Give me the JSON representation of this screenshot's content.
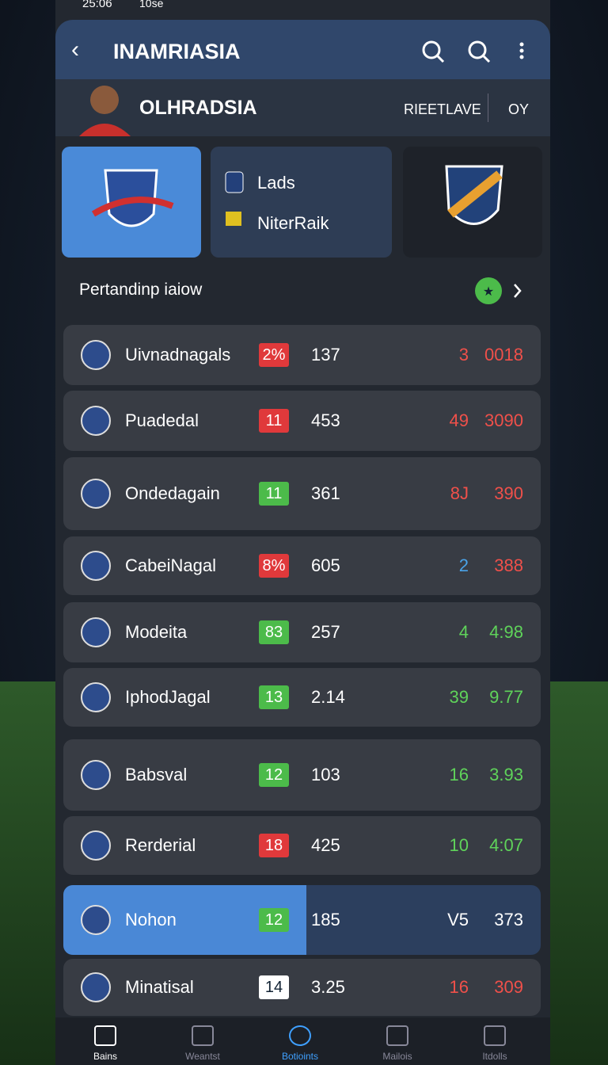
{
  "status": {
    "time": "25:06",
    "note": "10se"
  },
  "header": {
    "title": "INAMRIASIA"
  },
  "profile": {
    "name": "OLHRADSIA",
    "action": "RIEETLAVE",
    "extra": "OY"
  },
  "cards": {
    "items": [
      "Lads",
      "NiterRaik"
    ]
  },
  "section": {
    "title": "Pertandinp iaiow"
  },
  "rows": [
    {
      "name": "Uivnadnagals",
      "badge": "2%",
      "badge_color": "#e0393b",
      "value": "137",
      "stat": "3",
      "stat_color": "#f0504a",
      "score": "0018",
      "score_color": "#f0504a"
    },
    {
      "name": "Puadedal",
      "badge": "11",
      "badge_color": "#e0393b",
      "value": "453",
      "stat": "49",
      "stat_color": "#f0504a",
      "score": "3090",
      "score_color": "#f0504a"
    },
    {
      "name": "Ondedagain",
      "badge": "11",
      "badge_color": "#4cbb4a",
      "value": "361",
      "stat": "8J",
      "stat_color": "#f0504a",
      "score": "390",
      "score_color": "#f0504a"
    },
    {
      "name": "CabeiNagal",
      "badge": "8%",
      "badge_color": "#e0393b",
      "value": "605",
      "stat": "2",
      "stat_color": "#4aa3e8",
      "score": "388",
      "score_color": "#f0504a"
    },
    {
      "name": "Modeita",
      "badge": "83",
      "badge_color": "#4cbb4a",
      "value": "257",
      "stat": "4",
      "stat_color": "#5fd35a",
      "score": "4:98",
      "score_color": "#5fd35a"
    },
    {
      "name": "IphodJagal",
      "badge": "13",
      "badge_color": "#4cbb4a",
      "value": "2.14",
      "stat": "39",
      "stat_color": "#5fd35a",
      "score": "9.77",
      "score_color": "#5fd35a"
    },
    {
      "name": "Babsval",
      "badge": "12",
      "badge_color": "#4cbb4a",
      "value": "103",
      "stat": "16",
      "stat_color": "#5fd35a",
      "score": "3.93",
      "score_color": "#5fd35a"
    },
    {
      "name": "Rerderial",
      "badge": "18",
      "badge_color": "#e0393b",
      "value": "425",
      "stat": "10",
      "stat_color": "#5fd35a",
      "score": "4:07",
      "score_color": "#5fd35a"
    },
    {
      "name": "Nohon",
      "badge": "12",
      "badge_color": "#4cbb4a",
      "value": "185",
      "stat": "V5",
      "stat_color": "#ffffff",
      "score": "373",
      "score_color": "#ffffff"
    },
    {
      "name": "Minatisal",
      "badge": "14",
      "badge_color": "#ffffff",
      "value": "3.25",
      "stat": "16",
      "stat_color": "#f0504a",
      "score": "309",
      "score_color": "#f0504a"
    }
  ],
  "nav": [
    "Bains",
    "Weantst",
    "Botioints",
    "Mailois",
    "Itdolls"
  ]
}
